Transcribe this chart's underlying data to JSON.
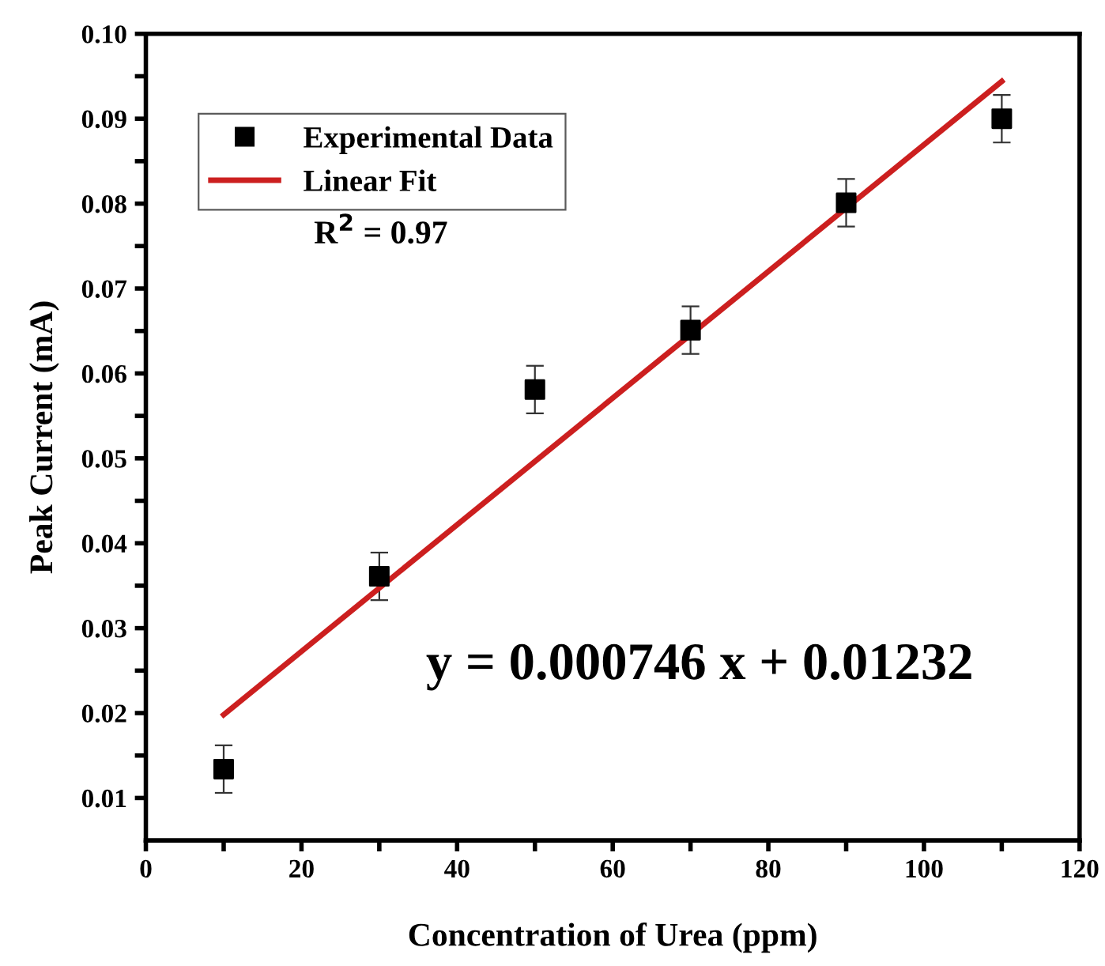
{
  "chart_data": {
    "type": "scatter",
    "xlabel": "Concentration of Urea (ppm)",
    "ylabel": "Peak Current (mA)",
    "xlim": [
      0,
      120
    ],
    "ylim": [
      0.005,
      0.1
    ],
    "xticks": [
      0,
      {
        "value": 10,
        "label": null
      },
      20,
      {
        "value": 30,
        "label": null
      },
      40,
      {
        "value": 50,
        "label": null
      },
      60,
      {
        "value": 70,
        "label": null
      },
      80,
      {
        "value": 90,
        "label": null
      },
      100,
      {
        "value": 110,
        "label": null
      },
      120
    ],
    "yticks": [
      {
        "value": 0.01,
        "label": "0.01"
      },
      {
        "value": 0.015,
        "label": null
      },
      {
        "value": 0.02,
        "label": "0.02"
      },
      {
        "value": 0.025,
        "label": null
      },
      {
        "value": 0.03,
        "label": "0.03"
      },
      {
        "value": 0.035,
        "label": null
      },
      {
        "value": 0.04,
        "label": "0.04"
      },
      {
        "value": 0.045,
        "label": null
      },
      {
        "value": 0.05,
        "label": "0.05"
      },
      {
        "value": 0.055,
        "label": null
      },
      {
        "value": 0.06,
        "label": "0.06"
      },
      {
        "value": 0.065,
        "label": null
      },
      {
        "value": 0.07,
        "label": "0.07"
      },
      {
        "value": 0.075,
        "label": null
      },
      {
        "value": 0.08,
        "label": "0.08"
      },
      {
        "value": 0.085,
        "label": null
      },
      {
        "value": 0.09,
        "label": "0.09"
      },
      {
        "value": 0.095,
        "label": null
      },
      {
        "value": 0.1,
        "label": "0.10"
      }
    ],
    "grid": false,
    "legend": "top left",
    "series": [
      {
        "name": "Experimental Data",
        "marker": "square",
        "color": "#000000",
        "x": [
          10,
          30,
          50,
          70,
          90,
          110
        ],
        "values": [
          0.0134,
          0.0361,
          0.0581,
          0.0651,
          0.0801,
          0.09
        ],
        "errors": [
          0.0028,
          0.0028,
          0.0028,
          0.0028,
          0.0028,
          0.0028
        ]
      },
      {
        "name": "Linear Fit",
        "type": "line",
        "color": "#cc1f1f",
        "x": [
          10,
          110
        ],
        "values": [
          0.0198,
          0.0944
        ]
      }
    ],
    "annotations": [
      "R$^{2}$ = 0.97",
      "y = 0.000746 x + 0.01232"
    ]
  }
}
